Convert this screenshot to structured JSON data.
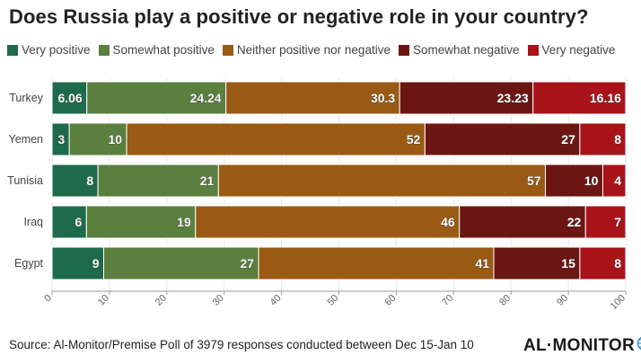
{
  "title": "Does Russia play a positive or negative role in your country?",
  "legend": [
    {
      "label": "Very positive",
      "color": "#1e6b4c"
    },
    {
      "label": "Somewhat positive",
      "color": "#5a7f3e"
    },
    {
      "label": "Neither positive nor negative",
      "color": "#9a5a14"
    },
    {
      "label": "Somewhat negative",
      "color": "#6b1612"
    },
    {
      "label": "Very negative",
      "color": "#a8141a"
    }
  ],
  "chart_data": {
    "type": "bar",
    "orientation": "horizontal",
    "stacked": true,
    "categories": [
      "Turkey",
      "Yemen",
      "Tunisia",
      "Iraq",
      "Egypt"
    ],
    "series": [
      {
        "name": "Very positive",
        "color": "#1e6b4c",
        "values": [
          6.06,
          3,
          8,
          6,
          9
        ]
      },
      {
        "name": "Somewhat positive",
        "color": "#5a7f3e",
        "values": [
          24.24,
          10,
          21,
          19,
          27
        ]
      },
      {
        "name": "Neither positive nor negative",
        "color": "#9a5a14",
        "values": [
          30.3,
          52,
          57,
          46,
          41
        ]
      },
      {
        "name": "Somewhat negative",
        "color": "#6b1612",
        "values": [
          23.23,
          27,
          10,
          22,
          15
        ]
      },
      {
        "name": "Very negative",
        "color": "#a8141a",
        "values": [
          16.16,
          8,
          4,
          7,
          8
        ]
      }
    ],
    "xlim": [
      0,
      100
    ],
    "xticks": [
      0,
      10,
      20,
      30,
      40,
      50,
      60,
      70,
      80,
      90,
      100
    ],
    "grid": true,
    "legend_position": "top"
  },
  "footer": {
    "source": "Source: Al-Monitor/Premise Poll of 3979 responses conducted between Dec 15-Jan 10",
    "logo_text": "AL·MONITOR",
    "logo_icon": "globe-icon"
  }
}
